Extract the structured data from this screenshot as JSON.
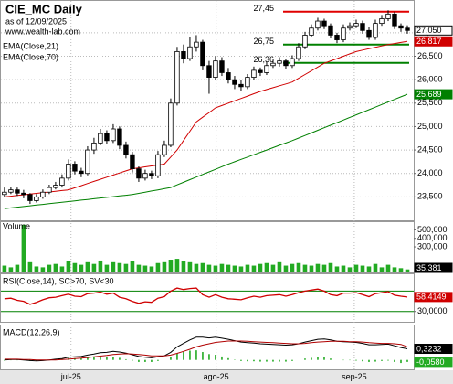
{
  "chart_data": [
    {
      "type": "candlestick",
      "title": "CIE_MC Daily",
      "subtitle": "as of 12/09/2025",
      "source": "www.wealth-lab.com",
      "up_color": "#ffffff",
      "down_color": "#000000",
      "last_label": "27,050",
      "ohlc": [
        [
          23550,
          23700,
          23500,
          23600
        ],
        [
          23600,
          23720,
          23560,
          23650
        ],
        [
          23650,
          23700,
          23520,
          23580
        ],
        [
          23580,
          23650,
          23470,
          23550
        ],
        [
          23550,
          23580,
          23350,
          23420
        ],
        [
          23420,
          23560,
          23380,
          23500
        ],
        [
          23500,
          23660,
          23460,
          23600
        ],
        [
          23600,
          23760,
          23560,
          23700
        ],
        [
          23700,
          23820,
          23660,
          23750
        ],
        [
          23750,
          23980,
          23700,
          23900
        ],
        [
          23900,
          24300,
          23850,
          24200
        ],
        [
          24200,
          24260,
          23980,
          24050
        ],
        [
          24050,
          24120,
          23920,
          24000
        ],
        [
          24000,
          24580,
          23960,
          24500
        ],
        [
          24500,
          24760,
          24420,
          24650
        ],
        [
          24650,
          24950,
          24600,
          24850
        ],
        [
          24850,
          24920,
          24620,
          24700
        ],
        [
          24700,
          25050,
          24650,
          24950
        ],
        [
          24950,
          25000,
          24520,
          24600
        ],
        [
          24600,
          24680,
          24320,
          24400
        ],
        [
          24400,
          24460,
          24020,
          24100
        ],
        [
          24100,
          24150,
          23820,
          23900
        ],
        [
          23900,
          24080,
          23850,
          24000
        ],
        [
          24000,
          24060,
          23880,
          23950
        ],
        [
          23950,
          24480,
          23900,
          24400
        ],
        [
          24400,
          24700,
          24350,
          24600
        ],
        [
          24600,
          25600,
          24560,
          25500
        ],
        [
          25500,
          26700,
          25450,
          26600
        ],
        [
          26600,
          26750,
          26350,
          26450
        ],
        [
          26450,
          26900,
          26400,
          26700
        ],
        [
          26700,
          26950,
          26600,
          26800
        ],
        [
          26800,
          26850,
          26200,
          26300
        ],
        [
          26300,
          26400,
          25700,
          26050
        ],
        [
          26050,
          26500,
          26000,
          26400
        ],
        [
          26400,
          26480,
          26080,
          26150
        ],
        [
          26150,
          26250,
          25920,
          26000
        ],
        [
          26000,
          26080,
          25800,
          25900
        ],
        [
          25900,
          26000,
          25760,
          25850
        ],
        [
          25850,
          26120,
          25800,
          26050
        ],
        [
          26050,
          26280,
          26000,
          26200
        ],
        [
          26200,
          26260,
          26080,
          26150
        ],
        [
          26150,
          26380,
          26100,
          26300
        ],
        [
          26300,
          26420,
          26250,
          26350
        ],
        [
          26350,
          26480,
          26280,
          26400
        ],
        [
          26400,
          26450,
          26220,
          26300
        ],
        [
          26300,
          26520,
          26250,
          26450
        ],
        [
          26450,
          26780,
          26400,
          26700
        ],
        [
          26700,
          27020,
          26650,
          26950
        ],
        [
          26950,
          27180,
          26900,
          27100
        ],
        [
          27100,
          27320,
          27050,
          27250
        ],
        [
          27250,
          27300,
          27080,
          27150
        ],
        [
          27150,
          27200,
          26880,
          26950
        ],
        [
          26950,
          27000,
          26780,
          26850
        ],
        [
          26850,
          27180,
          26800,
          27100
        ],
        [
          27100,
          27220,
          27050,
          27150
        ],
        [
          27150,
          27280,
          27100,
          27200
        ],
        [
          27200,
          27260,
          26980,
          27050
        ],
        [
          27050,
          27120,
          26850,
          26900
        ],
        [
          26900,
          27280,
          26850,
          27200
        ],
        [
          27200,
          27380,
          27150,
          27300
        ],
        [
          27300,
          27480,
          27250,
          27400
        ],
        [
          27400,
          27450,
          27080,
          27150
        ],
        [
          27150,
          27200,
          27020,
          27100
        ],
        [
          27100,
          27160,
          26980,
          27050
        ]
      ],
      "series": [
        {
          "name": "EMA(Close,21)",
          "color": "#d00000",
          "last_label": "26,817",
          "values": [
            23500,
            23515,
            23530,
            23545,
            23560,
            23575,
            23590,
            23605,
            23620,
            23635,
            23650,
            23695,
            23740,
            23785,
            23830,
            23875,
            23920,
            23965,
            24010,
            24055,
            24100,
            24120,
            24140,
            24160,
            24180,
            24200,
            24350,
            24500,
            24700,
            24900,
            25100,
            25200,
            25300,
            25400,
            25450,
            25500,
            25550,
            25600,
            25650,
            25700,
            25750,
            25790,
            25830,
            25870,
            25910,
            25950,
            26030,
            26110,
            26190,
            26270,
            26350,
            26400,
            26450,
            26500,
            26550,
            26600,
            26630,
            26660,
            26690,
            26720,
            26750,
            26772,
            26795,
            26817
          ]
        },
        {
          "name": "EMA(Close,70)",
          "color": "#008000",
          "last_label": "25,689",
          "values": [
            23250,
            23265,
            23280,
            23295,
            23310,
            23325,
            23340,
            23355,
            23370,
            23385,
            23400,
            23415,
            23430,
            23445,
            23460,
            23475,
            23490,
            23505,
            23520,
            23535,
            23550,
            23575,
            23600,
            23625,
            23650,
            23675,
            23700,
            23756,
            23811,
            23867,
            23922,
            23978,
            24033,
            24089,
            24144,
            24200,
            24250,
            24300,
            24350,
            24400,
            24450,
            24500,
            24550,
            24600,
            24650,
            24700,
            24755,
            24810,
            24865,
            24920,
            24975,
            25030,
            25085,
            25140,
            25195,
            25250,
            25305,
            25360,
            25415,
            25470,
            25525,
            25580,
            25635,
            25689
          ]
        }
      ],
      "annotations": [
        {
          "label": "27,45",
          "value": 27450,
          "color": "#e00000"
        },
        {
          "label": "26,75",
          "value": 26750,
          "color": "#008000"
        },
        {
          "label": "26,36",
          "value": 26360,
          "color": "#008000"
        }
      ],
      "ylim": [
        23000,
        27680
      ],
      "yticks": [
        {
          "value": 23500,
          "label": "23,500"
        },
        {
          "value": 24000,
          "label": "24,000"
        },
        {
          "value": 24500,
          "label": "24,500"
        },
        {
          "value": 25000,
          "label": "25,000"
        },
        {
          "value": 25500,
          "label": "25,500"
        },
        {
          "value": 26000,
          "label": "26,000"
        },
        {
          "value": 26500,
          "label": "26,500"
        },
        {
          "value": 27000,
          "label": "27,000"
        }
      ],
      "xlim": [
        -0.7,
        64
      ],
      "xticks": [
        {
          "value": 10.4,
          "label": "jul-25"
        },
        {
          "value": 33.1,
          "label": "ago-25"
        },
        {
          "value": 54.7,
          "label": "sep-25"
        }
      ],
      "grid": true
    },
    {
      "type": "bar",
      "title": "Volume",
      "color": "#22aa22",
      "last_label": "35,381",
      "values": [
        80000,
        60000,
        90000,
        560000,
        120000,
        70000,
        60000,
        90000,
        100000,
        70000,
        130000,
        110000,
        90000,
        120000,
        100000,
        140000,
        90000,
        120000,
        110000,
        100000,
        130000,
        90000,
        80000,
        70000,
        110000,
        120000,
        150000,
        160000,
        130000,
        120000,
        100000,
        110000,
        90000,
        80000,
        100000,
        90000,
        80000,
        70000,
        90000,
        80000,
        100000,
        110000,
        90000,
        120000,
        80000,
        100000,
        110000,
        90000,
        80000,
        100000,
        90000,
        110000,
        70000,
        80000,
        60000,
        90000,
        80000,
        70000,
        100000,
        60000,
        90000,
        60000,
        50000,
        35381
      ],
      "ylim": [
        0,
        590000
      ],
      "yticks": [
        {
          "value": 300000,
          "label": "300,000"
        },
        {
          "value": 400000,
          "label": "400,000"
        },
        {
          "value": 500000,
          "label": "500,000"
        }
      ]
    },
    {
      "type": "line",
      "title": "RSI(Close,14), SC>70, SV<30",
      "color": "#d00000",
      "last_label": "58,4149",
      "values": [
        55,
        56,
        52,
        50,
        44,
        48,
        53,
        57,
        58,
        61,
        64,
        60,
        59,
        65,
        66,
        68,
        64,
        66,
        58,
        55,
        50,
        46,
        49,
        48,
        56,
        59,
        70,
        76,
        73,
        75,
        76,
        63,
        58,
        63,
        58,
        55,
        54,
        53,
        57,
        60,
        58,
        61,
        62,
        63,
        60,
        63,
        67,
        70,
        72,
        74,
        70,
        63,
        61,
        66,
        66,
        67,
        63,
        59,
        65,
        67,
        69,
        62,
        60,
        58.4149
      ],
      "levels": [
        70,
        30
      ],
      "level_color": "#008000",
      "ylim": [
        8,
        103
      ],
      "yticks": [
        {
          "value": 30,
          "label": "30,0000"
        }
      ]
    },
    {
      "type": "macd",
      "title": "MACD(12,26,9)",
      "series": [
        {
          "color": "#000000",
          "last_label": "0,3232",
          "values": [
            0.0,
            0.01,
            0.01,
            0.0,
            -0.02,
            -0.03,
            -0.02,
            0.0,
            0.02,
            0.04,
            0.08,
            0.09,
            0.1,
            0.14,
            0.17,
            0.21,
            0.22,
            0.25,
            0.23,
            0.2,
            0.15,
            0.1,
            0.08,
            0.06,
            0.09,
            0.12,
            0.22,
            0.38,
            0.48,
            0.58,
            0.66,
            0.66,
            0.64,
            0.66,
            0.63,
            0.6,
            0.56,
            0.52,
            0.5,
            0.49,
            0.47,
            0.46,
            0.45,
            0.44,
            0.43,
            0.44,
            0.47,
            0.52,
            0.56,
            0.6,
            0.61,
            0.58,
            0.54,
            0.53,
            0.52,
            0.51,
            0.48,
            0.44,
            0.44,
            0.45,
            0.46,
            0.41,
            0.36,
            0.3232
          ]
        },
        {
          "color": "#b00000",
          "values": [
            0.02,
            0.02,
            0.02,
            0.01,
            0.01,
            0.0,
            0.0,
            0.0,
            0.0,
            0.01,
            0.02,
            0.04,
            0.05,
            0.07,
            0.09,
            0.11,
            0.13,
            0.16,
            0.17,
            0.18,
            0.17,
            0.16,
            0.14,
            0.12,
            0.12,
            0.12,
            0.14,
            0.19,
            0.25,
            0.31,
            0.38,
            0.43,
            0.47,
            0.51,
            0.53,
            0.55,
            0.55,
            0.55,
            0.54,
            0.53,
            0.52,
            0.51,
            0.5,
            0.49,
            0.48,
            0.47,
            0.47,
            0.48,
            0.5,
            0.52,
            0.53,
            0.54,
            0.54,
            0.54,
            0.53,
            0.53,
            0.52,
            0.5,
            0.49,
            0.48,
            0.48,
            0.47,
            0.45,
            0.3812
          ]
        }
      ],
      "histogram": {
        "color": "#22aa22",
        "last_label": "-0,0580",
        "values": [
          -0.02,
          -0.01,
          -0.01,
          -0.01,
          -0.03,
          -0.03,
          -0.02,
          0.0,
          0.02,
          0.03,
          0.06,
          0.05,
          0.05,
          0.07,
          0.08,
          0.1,
          0.09,
          0.09,
          0.06,
          0.02,
          -0.02,
          -0.06,
          -0.06,
          -0.06,
          -0.03,
          0.0,
          0.08,
          0.19,
          0.23,
          0.27,
          0.28,
          0.23,
          0.17,
          0.15,
          0.1,
          0.05,
          0.01,
          -0.03,
          -0.04,
          -0.04,
          -0.05,
          -0.05,
          -0.05,
          -0.05,
          -0.05,
          -0.03,
          0.0,
          0.04,
          0.06,
          0.08,
          0.08,
          0.04,
          0.0,
          -0.01,
          -0.01,
          -0.02,
          -0.04,
          -0.06,
          -0.05,
          -0.03,
          -0.02,
          -0.06,
          -0.09,
          -0.058
        ]
      },
      "ylim": [
        -0.3,
        1.0
      ]
    }
  ]
}
